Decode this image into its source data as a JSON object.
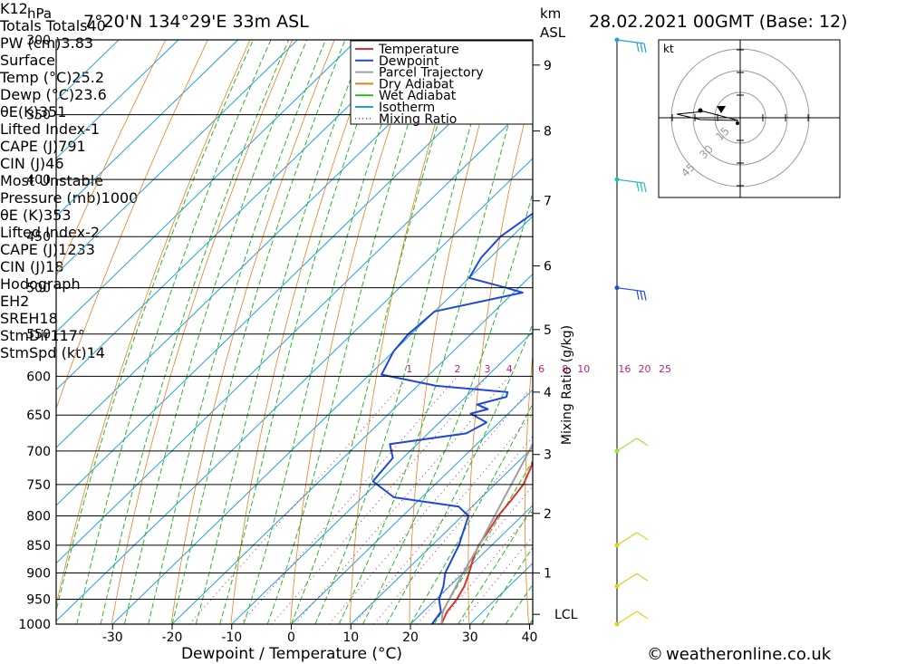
{
  "header": {
    "hpa_label": "hPa",
    "location": "7°20'N  134°29'E  33m  ASL",
    "km_label": "km",
    "asl_label": "ASL",
    "datetime": "28.02.2021  00GMT  (Base: 12)"
  },
  "chart_data": {
    "type": "line",
    "subtype": "skew-T log-p sounding",
    "xlabel": "Dewpoint / Temperature (°C)",
    "ylabel": "hPa",
    "mixing_ratio_axis_label": "Mixing Ratio (g/kg)",
    "xlim": [
      -40,
      40
    ],
    "ylim": [
      1000,
      300
    ],
    "x_ticks": [
      -30,
      -20,
      -10,
      0,
      10,
      20,
      30,
      40
    ],
    "pressure_levels": [
      300,
      350,
      400,
      450,
      500,
      550,
      600,
      650,
      700,
      750,
      800,
      850,
      900,
      950,
      1000
    ],
    "km_ticks": [
      {
        "km": 1,
        "p": 900
      },
      {
        "km": 2,
        "p": 796
      },
      {
        "km": 3,
        "p": 705
      },
      {
        "km": 4,
        "p": 620
      },
      {
        "km": 5,
        "p": 545
      },
      {
        "km": 6,
        "p": 478
      },
      {
        "km": 7,
        "p": 418
      },
      {
        "km": 8,
        "p": 362
      },
      {
        "km": 9,
        "p": 316
      }
    ],
    "lcl_label": "LCL",
    "lcl_pressure": 980,
    "mixing_ratio_labels": [
      "1",
      "2",
      "3",
      "4",
      "6",
      "8",
      "10",
      "16",
      "20",
      "25"
    ],
    "mixing_ratio_values": [
      1,
      2,
      3,
      4,
      6,
      8,
      10,
      16,
      20,
      25
    ],
    "legend": {
      "placement": "top-right",
      "entries": [
        {
          "name": "Temperature",
          "color": "#e03030",
          "style": "solid"
        },
        {
          "name": "Dewpoint",
          "color": "#2048d8",
          "style": "solid"
        },
        {
          "name": "Parcel Trajectory",
          "color": "#a0a0a0",
          "style": "solid"
        },
        {
          "name": "Dry Adiabat",
          "color": "#e88020",
          "style": "solid"
        },
        {
          "name": "Wet Adiabat",
          "color": "#28b828",
          "style": "solid"
        },
        {
          "name": "Isotherm",
          "color": "#20a0e0",
          "style": "solid"
        },
        {
          "name": "Mixing Ratio",
          "color": "#c02080",
          "style": "dotted"
        }
      ]
    },
    "series": [
      {
        "name": "Temperature",
        "color": "#e03030",
        "points": [
          [
            1000,
            25.2
          ],
          [
            975,
            24.0
          ],
          [
            950,
            23.5
          ],
          [
            925,
            22.5
          ],
          [
            900,
            21.0
          ],
          [
            875,
            19.3
          ],
          [
            850,
            17.8
          ],
          [
            825,
            17.0
          ],
          [
            800,
            16.0
          ],
          [
            775,
            15.5
          ],
          [
            750,
            14.8
          ],
          [
            725,
            13.2
          ],
          [
            700,
            11.3
          ],
          [
            675,
            10.5
          ],
          [
            650,
            9.8
          ],
          [
            630,
            8.5
          ],
          [
            615,
            9.5
          ],
          [
            600,
            8.3
          ],
          [
            575,
            6.8
          ],
          [
            550,
            5.0
          ],
          [
            525,
            2.8
          ],
          [
            500,
            0.2
          ],
          [
            475,
            -2.6
          ],
          [
            450,
            -5.6
          ],
          [
            425,
            -8.8
          ],
          [
            400,
            -11.6
          ],
          [
            375,
            -15.8
          ],
          [
            350,
            -20.3
          ],
          [
            325,
            -25.3
          ],
          [
            300,
            -30.7
          ]
        ]
      },
      {
        "name": "Dewpoint",
        "color": "#2048d8",
        "points": [
          [
            1000,
            23.6
          ],
          [
            975,
            23.0
          ],
          [
            950,
            20.5
          ],
          [
            925,
            19.0
          ],
          [
            900,
            17.0
          ],
          [
            850,
            14.5
          ],
          [
            800,
            11.0
          ],
          [
            785,
            7.8
          ],
          [
            770,
            -4.7
          ],
          [
            745,
            -11.0
          ],
          [
            710,
            -11.7
          ],
          [
            690,
            -14.6
          ],
          [
            675,
            -3.6
          ],
          [
            660,
            -2.1
          ],
          [
            648,
            -6.3
          ],
          [
            642,
            -4.2
          ],
          [
            636,
            -6.8
          ],
          [
            626,
            -3.2
          ],
          [
            620,
            -3.8
          ],
          [
            612,
            -16.9
          ],
          [
            598,
            -28.0
          ],
          [
            570,
            -30.0
          ],
          [
            550,
            -30.5
          ],
          [
            525,
            -30.0
          ],
          [
            505,
            -18.5
          ],
          [
            500,
            -22.1
          ],
          [
            490,
            -30.0
          ],
          [
            470,
            -31.5
          ],
          [
            450,
            -31.9
          ],
          [
            425,
            -30.2
          ],
          [
            420,
            -25.3
          ],
          [
            412,
            -24.5
          ],
          [
            405,
            -25.7
          ],
          [
            400,
            -25.0
          ],
          [
            390,
            -25.5
          ],
          [
            383,
            -26.4
          ],
          [
            375,
            -28.5
          ],
          [
            370,
            -31.0
          ],
          [
            362,
            -33.0
          ],
          [
            345,
            -36.0
          ],
          [
            330,
            -37.5
          ],
          [
            300,
            -47.0
          ]
        ]
      },
      {
        "name": "Parcel Trajectory",
        "color": "#a0a0a0",
        "points": [
          [
            1000,
            25.2
          ],
          [
            975,
            23.3
          ],
          [
            950,
            22.2
          ],
          [
            900,
            20.0
          ],
          [
            850,
            17.9
          ],
          [
            800,
            15.4
          ],
          [
            750,
            12.8
          ],
          [
            700,
            10.0
          ],
          [
            650,
            6.8
          ],
          [
            600,
            3.3
          ],
          [
            550,
            -0.7
          ],
          [
            500,
            -5.5
          ],
          [
            450,
            -11.0
          ],
          [
            400,
            -17.5
          ],
          [
            370,
            -22.0
          ]
        ]
      }
    ],
    "hodograph": {
      "unit_label": "kt",
      "ring_labels": [
        "15",
        "30",
        "45"
      ],
      "rings_kt": [
        15,
        30,
        45
      ]
    },
    "wind_profile_colors": [
      "#20a0e0",
      "#20c0b0",
      "#2048d8",
      "#a0e040",
      "#e0d020"
    ]
  },
  "indices": {
    "top": [
      {
        "label": "K",
        "value": "12"
      },
      {
        "label": "Totals Totals",
        "value": "40"
      },
      {
        "label": "PW (cm)",
        "value": "3.83"
      }
    ],
    "surface_title": "Surface",
    "surface": [
      {
        "label": "Temp (°C)",
        "value": "25.2"
      },
      {
        "label": "Dewp (°C)",
        "value": "23.6"
      },
      {
        "label": "θE(K)",
        "value": "351"
      },
      {
        "label": "Lifted Index",
        "value": "-1"
      },
      {
        "label": "CAPE (J)",
        "value": "791"
      },
      {
        "label": "CIN (J)",
        "value": "46"
      }
    ],
    "mu_title": "Most Unstable",
    "mu": [
      {
        "label": "Pressure (mb)",
        "value": "1000"
      },
      {
        "label": "θE (K)",
        "value": "353"
      },
      {
        "label": "Lifted Index",
        "value": "-2"
      },
      {
        "label": "CAPE (J)",
        "value": "1233"
      },
      {
        "label": "CIN (J)",
        "value": "18"
      }
    ],
    "hodo_title": "Hodograph",
    "hodo": [
      {
        "label": "EH",
        "value": "2"
      },
      {
        "label": "SREH",
        "value": "18"
      },
      {
        "label": "StmDir",
        "value": "117°"
      },
      {
        "label": "StmSpd (kt)",
        "value": "14"
      }
    ]
  },
  "footer": {
    "copyright_symbol": "©",
    "site": "weatheronline.co.uk"
  }
}
